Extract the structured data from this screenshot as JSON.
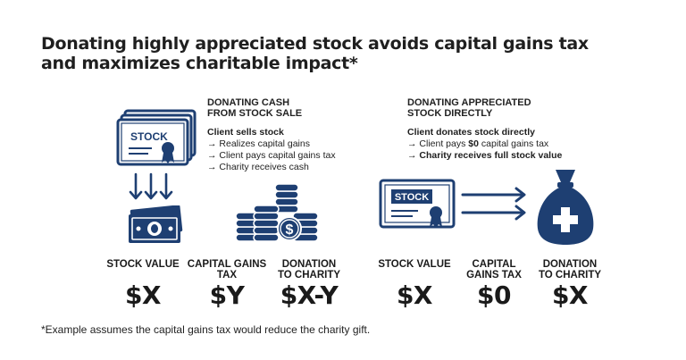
{
  "title": "Donating highly appreciated stock avoids capital gains tax and maximizes charitable impact*",
  "colors": {
    "navy": "#1e3f72",
    "text": "#1c1c1c"
  },
  "left": {
    "heading": [
      "DONATING CASH",
      "FROM STOCK SALE"
    ],
    "lead": "Client sells stock",
    "steps": [
      "→ Realizes capital gains",
      "→ Client pays capital gains tax",
      "→ Charity receives cash"
    ],
    "certificate_text": "STOCK",
    "columns": [
      {
        "label": [
          "STOCK VALUE"
        ],
        "value": "$X"
      },
      {
        "label": [
          "CAPITAL GAINS",
          "TAX"
        ],
        "value": "$Y"
      },
      {
        "label": [
          "DONATION",
          "TO CHARITY"
        ],
        "value": "$X-Y"
      }
    ]
  },
  "right": {
    "heading": [
      "DONATING APPRECIATED",
      "STOCK DIRECTLY"
    ],
    "lead": "Client donates stock directly",
    "step1_prefix": "→ Client pays ",
    "step1_bold": "$0",
    "step1_suffix": " capital gains tax",
    "step2": "→ Charity receives full stock value",
    "certificate_text": "STOCK",
    "columns": [
      {
        "label": [
          "STOCK VALUE"
        ],
        "value": "$X"
      },
      {
        "label": [
          "CAPITAL",
          "GAINS TAX"
        ],
        "value": "$0"
      },
      {
        "label": [
          "DONATION",
          "TO CHARITY"
        ],
        "value": "$X"
      }
    ]
  },
  "footnote": "*Example assumes the capital gains tax would reduce the charity gift."
}
